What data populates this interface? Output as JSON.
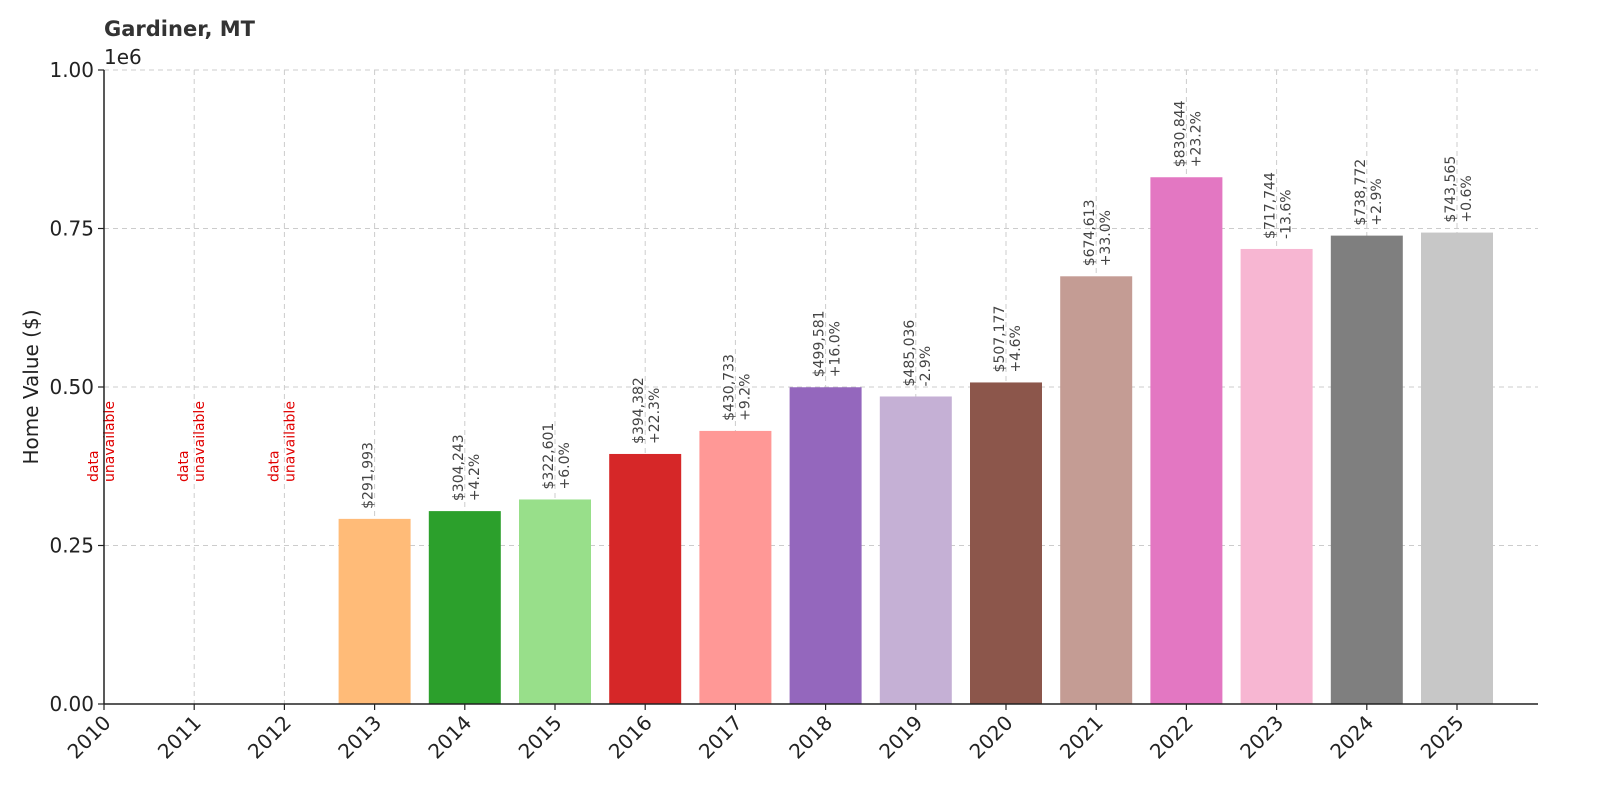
{
  "chart_data": {
    "type": "bar",
    "title": "Gardiner, MT",
    "ylabel": "Home Value ($)",
    "xlabel": "",
    "y_offset_label": "1e6",
    "ylim": [
      0,
      1000000
    ],
    "yticks": [
      0,
      250000,
      500000,
      750000,
      1000000
    ],
    "ytick_labels": [
      "0.00",
      "0.25",
      "0.50",
      "0.75",
      "1.00"
    ],
    "grid": true,
    "categories": [
      "2010",
      "2011",
      "2012",
      "2013",
      "2014",
      "2015",
      "2016",
      "2017",
      "2018",
      "2019",
      "2020",
      "2021",
      "2022",
      "2023",
      "2024",
      "2025"
    ],
    "values": [
      null,
      null,
      null,
      291993,
      304243,
      322601,
      394382,
      430733,
      499581,
      485036,
      507177,
      674613,
      830844,
      717744,
      738772,
      743565
    ],
    "value_labels": [
      "",
      "",
      "",
      "$291,993",
      "$304,243",
      "$322,601",
      "$394,382",
      "$430,733",
      "$499,581",
      "$485,036",
      "$507,177",
      "$674,613",
      "$830,844",
      "$717,744",
      "$738,772",
      "$743,565"
    ],
    "change_labels": [
      "",
      "",
      "",
      "",
      "+4.2%",
      "+6.0%",
      "+22.3%",
      "+9.2%",
      "+16.0%",
      "-2.9%",
      "+4.6%",
      "+33.0%",
      "+23.2%",
      "-13.6%",
      "+2.9%",
      "+0.6%"
    ],
    "unavailable_label": [
      "data",
      "unavailable"
    ],
    "colors": [
      "#1f77b4",
      "#aec7e8",
      "#ff7f0e",
      "#ffbb78",
      "#2ca02c",
      "#98df8a",
      "#d62728",
      "#ff9896",
      "#9467bd",
      "#c5b0d5",
      "#8c564b",
      "#c49c94",
      "#e377c2",
      "#f7b6d2",
      "#7f7f7f",
      "#c7c7c7"
    ]
  }
}
